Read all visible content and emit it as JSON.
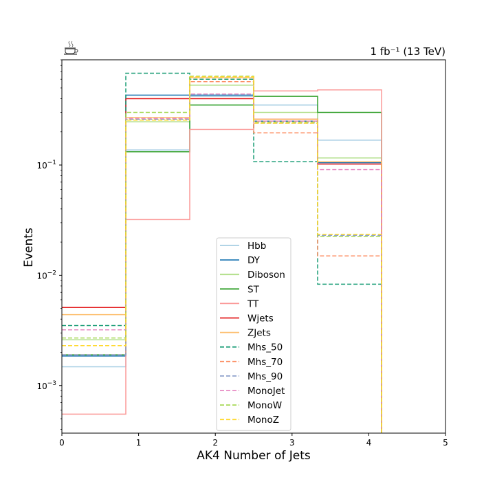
{
  "chart_data": {
    "type": "line",
    "subtype": "step-histogram",
    "title_right": "1 fb⁻¹ (13 TeV)",
    "xlabel": "AK4 Number of Jets",
    "ylabel": "Events",
    "xlim": [
      0,
      5
    ],
    "ylim": [
      0.00037,
      0.9
    ],
    "yscale": "log",
    "grid": false,
    "legend_position": "lower-center",
    "bin_edges": [
      0,
      0.833,
      1.667,
      2.5,
      3.333,
      4.167
    ],
    "x_ticks": [
      "0",
      "1",
      "2",
      "3",
      "4",
      "5"
    ],
    "y_ticks": [
      {
        "value": 0.001,
        "label": "10",
        "exp": "−3"
      },
      {
        "value": 0.01,
        "label": "10",
        "exp": "−2"
      },
      {
        "value": 0.1,
        "label": "10",
        "exp": "−1"
      }
    ],
    "series": [
      {
        "name": "Hbb",
        "color": "#a6cee3",
        "dashed": false,
        "values": [
          0.00148,
          0.137,
          0.42,
          0.35,
          0.168
        ]
      },
      {
        "name": "DY",
        "color": "#1f78b4",
        "dashed": false,
        "values": [
          0.00185,
          0.43,
          0.43,
          0.25,
          0.105
        ]
      },
      {
        "name": "Diboson",
        "color": "#b2df8a",
        "dashed": false,
        "values": [
          0.0026,
          0.247,
          0.53,
          0.3,
          0.116
        ]
      },
      {
        "name": "ST",
        "color": "#33a02c",
        "dashed": false,
        "values": [
          0.0019,
          0.132,
          0.35,
          0.42,
          0.3
        ]
      },
      {
        "name": "TT",
        "color": "#fb9a99",
        "dashed": false,
        "values": [
          0.00055,
          0.032,
          0.21,
          0.47,
          0.48
        ]
      },
      {
        "name": "Wjets",
        "color": "#e31a1c",
        "dashed": false,
        "values": [
          0.0051,
          0.4,
          0.4,
          0.26,
          0.102
        ]
      },
      {
        "name": "ZJets",
        "color": "#fdbf6f",
        "dashed": false,
        "values": [
          0.0044,
          0.27,
          0.62,
          0.26,
          0.107
        ]
      },
      {
        "name": "Mhs_50",
        "color": "#1b9e77",
        "dashed": true,
        "values": [
          0.0035,
          0.68,
          0.6,
          0.107,
          0.0083
        ]
      },
      {
        "name": "Mhs_70",
        "color": "#fc8d62",
        "dashed": true,
        "values": [
          0.0019,
          0.26,
          0.57,
          0.196,
          0.015
        ]
      },
      {
        "name": "Mhs_90",
        "color": "#8da0cb",
        "dashed": true,
        "values": [
          0.0019,
          0.26,
          0.44,
          0.24,
          0.023
        ]
      },
      {
        "name": "MonoJet",
        "color": "#e78ac3",
        "dashed": true,
        "values": [
          0.0032,
          0.265,
          0.44,
          0.25,
          0.091
        ]
      },
      {
        "name": "MonoW",
        "color": "#a6d854",
        "dashed": true,
        "values": [
          0.0027,
          0.3,
          0.64,
          0.245,
          0.0225
        ]
      },
      {
        "name": "MonoZ",
        "color": "#ffd92f",
        "dashed": true,
        "values": [
          0.0023,
          0.255,
          0.63,
          0.24,
          0.0235
        ]
      }
    ]
  },
  "logo_icon": "coffee-cup-icon"
}
